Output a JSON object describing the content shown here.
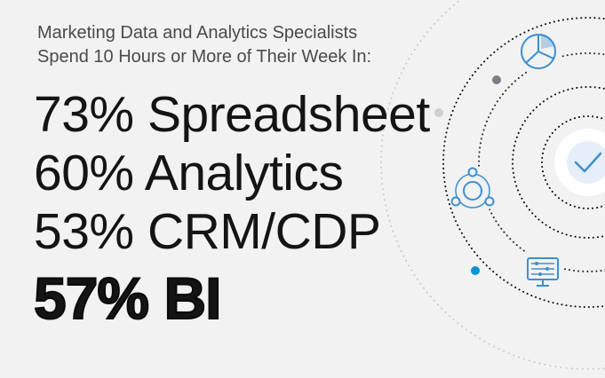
{
  "headline": {
    "line1": "Marketing Data and Analytics Specialists",
    "line2": "Spend 10 Hours or More of Their Week In:"
  },
  "stats": [
    {
      "percent": "73%",
      "label": "Spreadsheet",
      "emphasis": false
    },
    {
      "percent": "60%",
      "label": "Analytics",
      "emphasis": false
    },
    {
      "percent": "53%",
      "label": "CRM/CDP",
      "emphasis": false
    },
    {
      "percent": "57%",
      "label": "BI",
      "emphasis": true
    }
  ],
  "colors": {
    "background": "#f2f2f2",
    "text": "#141414",
    "headline_text": "#4a4a4a",
    "accent_blue": "#0096d6",
    "icon_blue": "#3d8fd1",
    "orbit_gray": "#b5b5b5",
    "dot_dark": "#7a7f85"
  },
  "icons": [
    "pie-chart-icon",
    "network-icon",
    "checkmark-icon",
    "dashboard-icon"
  ]
}
